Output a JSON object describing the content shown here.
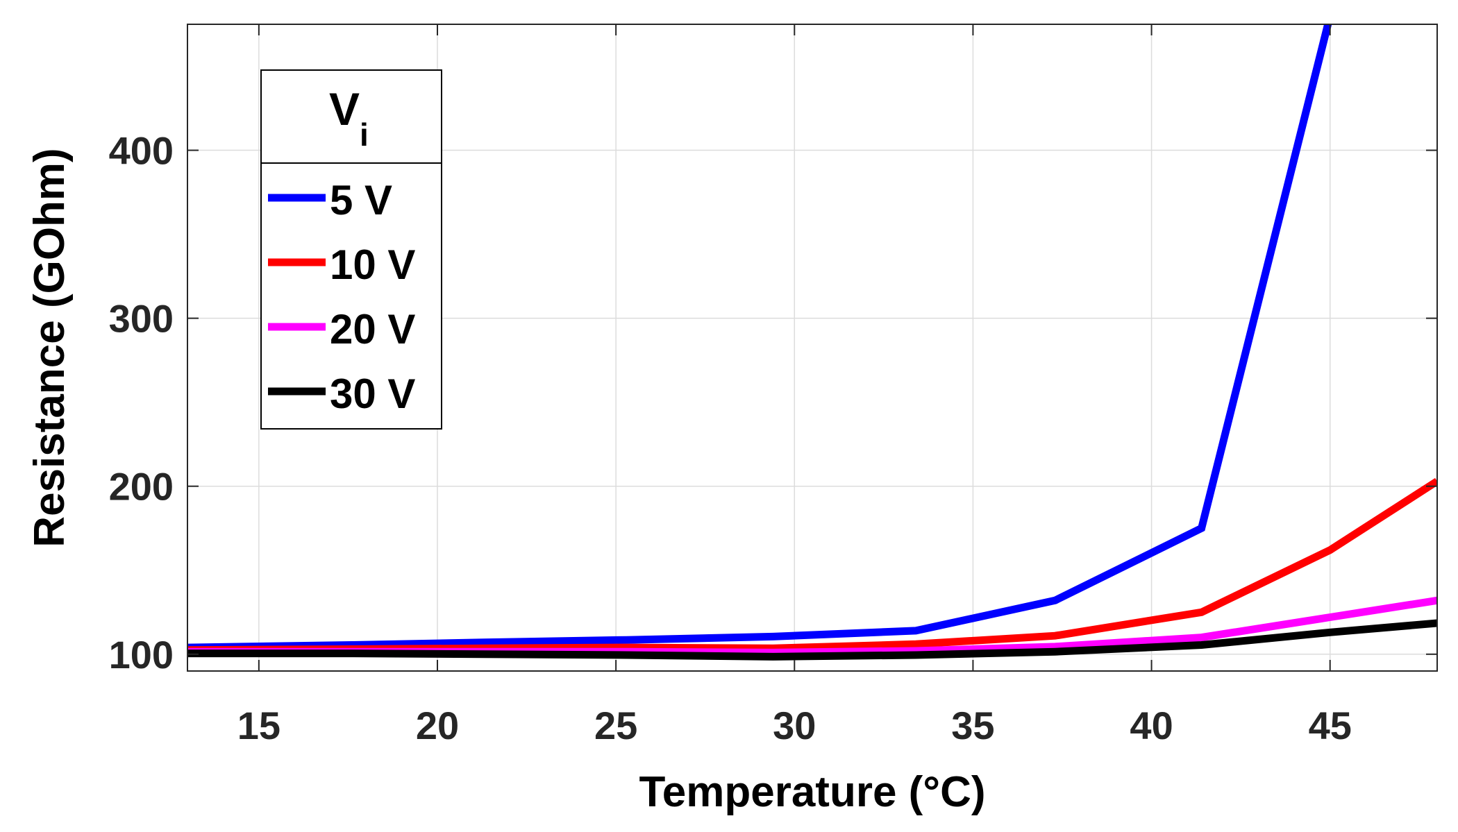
{
  "chart_data": {
    "type": "line",
    "title": "",
    "xlabel": "Temperature (°C)",
    "ylabel": "Resistance (GOhm)",
    "xlim": [
      13,
      48
    ],
    "ylim": [
      90,
      475
    ],
    "xticks": [
      15,
      20,
      25,
      30,
      35,
      40,
      45
    ],
    "yticks": [
      100,
      200,
      300,
      400
    ],
    "xtick_labels": [
      "15",
      "20",
      "25",
      "30",
      "35",
      "40",
      "45"
    ],
    "ytick_labels": [
      "100",
      "200",
      "300",
      "400"
    ],
    "grid": true,
    "legend": {
      "title_main": "V",
      "title_sub": "i",
      "placement": "top-left"
    },
    "series": [
      {
        "name": "5 V",
        "color": "#0000ff",
        "x": [
          13,
          17.6,
          21.3,
          25.3,
          29.4,
          33.4,
          37.3,
          41.4,
          45.0
        ],
        "y": [
          104,
          105.5,
          107,
          108.5,
          110.5,
          114,
          132,
          175,
          480
        ]
      },
      {
        "name": "10 V",
        "color": "#ff0000",
        "x": [
          13,
          17.6,
          21.3,
          25.3,
          29.4,
          33.4,
          37.3,
          41.4,
          45.0,
          48
        ],
        "y": [
          102.5,
          103,
          103.5,
          104,
          103.5,
          106,
          111,
          125,
          162,
          203
        ]
      },
      {
        "name": "20 V",
        "color": "#ff00ff",
        "x": [
          13,
          17.6,
          21.3,
          25.3,
          29.4,
          33.4,
          37.3,
          41.4,
          45.0,
          48
        ],
        "y": [
          101.5,
          101.5,
          101.5,
          101.5,
          101,
          102,
          104.5,
          110,
          122,
          132
        ]
      },
      {
        "name": "30 V",
        "color": "#000000",
        "x": [
          13,
          17.6,
          21.3,
          25.3,
          29.4,
          33.4,
          37.3,
          41.4,
          45.0,
          48
        ],
        "y": [
          100.5,
          100.5,
          100,
          99.5,
          98.5,
          99.5,
          101.5,
          105.5,
          113,
          118.5
        ]
      }
    ]
  }
}
